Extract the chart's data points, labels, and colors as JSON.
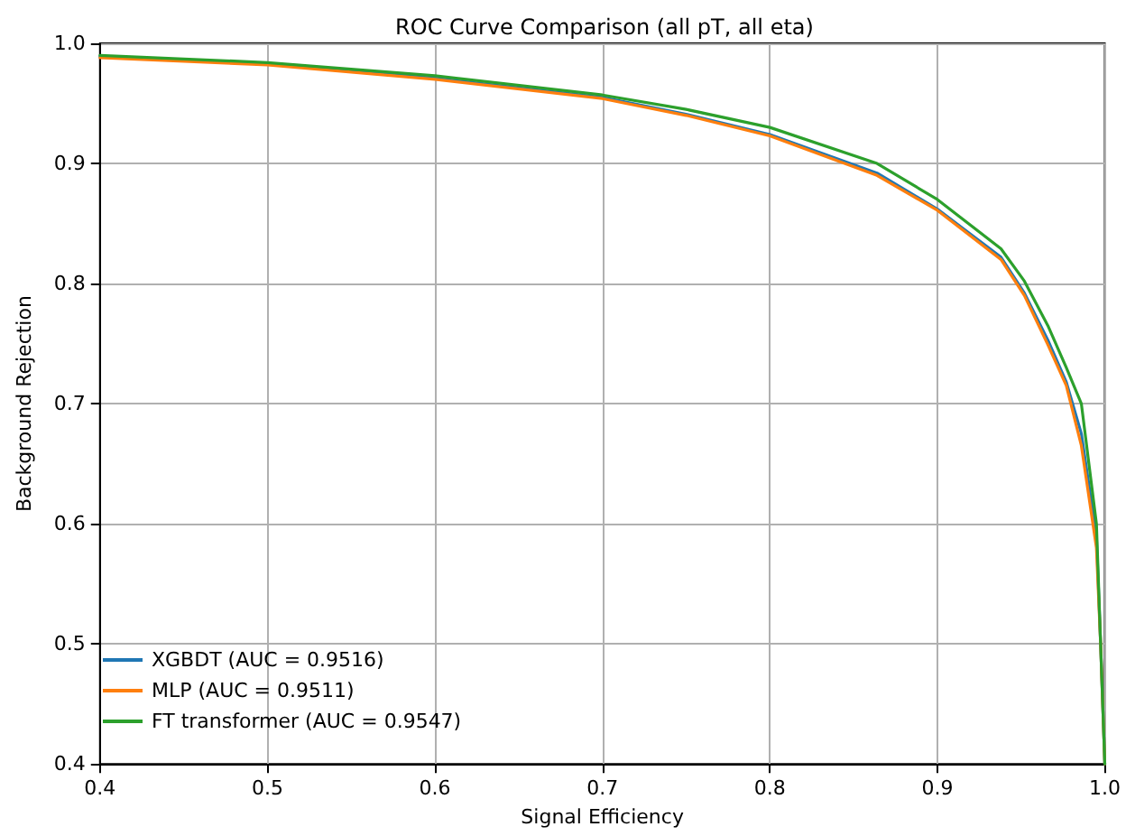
{
  "chart_data": {
    "type": "line",
    "title": "ROC Curve Comparison (all pT, all eta)",
    "xlabel": "Signal Efficiency",
    "ylabel": "Background Rejection",
    "x": [
      0.4,
      0.5,
      0.6,
      0.7,
      0.75,
      0.8,
      0.864,
      0.9,
      0.938,
      0.952,
      0.966,
      0.977,
      0.986,
      0.995,
      0.9975,
      1.0
    ],
    "series": [
      {
        "name": "XGBDT (AUC = 0.9516)",
        "color": "#1f77b4",
        "values": [
          0.989,
          0.983,
          0.971,
          0.955,
          0.941,
          0.924,
          0.892,
          0.862,
          0.822,
          0.792,
          0.753,
          0.718,
          0.675,
          0.59,
          0.5,
          0.4
        ]
      },
      {
        "name": "MLP (AUC = 0.9511)",
        "color": "#ff7f0e",
        "values": [
          0.988,
          0.982,
          0.97,
          0.954,
          0.94,
          0.923,
          0.89,
          0.861,
          0.82,
          0.79,
          0.749,
          0.715,
          0.665,
          0.58,
          0.5,
          0.4
        ]
      },
      {
        "name": "FT transformer (AUC = 0.9547)",
        "color": "#2ca02c",
        "values": [
          0.99,
          0.984,
          0.973,
          0.957,
          0.945,
          0.93,
          0.9,
          0.87,
          0.829,
          0.802,
          0.765,
          0.73,
          0.7,
          0.6,
          0.5,
          0.4
        ]
      }
    ],
    "xlim": [
      0.4,
      1.0
    ],
    "xticks": [
      0.4,
      0.5,
      0.6,
      0.7,
      0.8,
      0.9,
      {
        "value": 1.0,
        "label": "1.0"
      }
    ],
    "ylim": [
      0.4,
      1.0
    ],
    "yticks": [
      0.4,
      0.5,
      0.6,
      0.7,
      0.8,
      0.9,
      {
        "value": 1.0,
        "label": "1.0"
      }
    ],
    "grid": true,
    "legend": "bottom left",
    "marker": "none",
    "line_style": "solid"
  }
}
